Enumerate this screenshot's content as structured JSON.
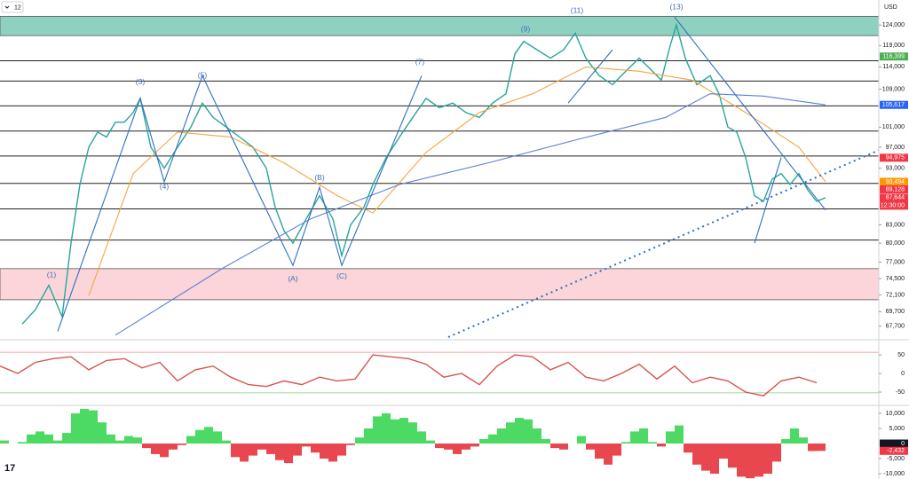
{
  "chart_data": [
    {
      "type": "line",
      "interval": "12",
      "currency": "USD",
      "log_scale": true,
      "xlim": [
        0,
        990
      ],
      "ylim": [
        66000,
        130400
      ],
      "yticks": [
        {
          "value": 124000,
          "label": "124,000"
        },
        {
          "value": 119000,
          "label": "119,000"
        },
        {
          "value": 114000,
          "label": "114,000"
        },
        {
          "value": 109000,
          "label": "109,000"
        },
        {
          "value": 101000,
          "label": "101,000"
        },
        {
          "value": 97000,
          "label": "97,000"
        },
        {
          "value": 93000,
          "label": "93,000"
        },
        {
          "value": 83000,
          "label": "83,000"
        },
        {
          "value": 80000,
          "label": "80,000"
        },
        {
          "value": 77000,
          "label": "77,000"
        },
        {
          "value": 74500,
          "label": "74,500"
        },
        {
          "value": 72100,
          "label": "72,100"
        },
        {
          "value": 69700,
          "label": "69,700"
        },
        {
          "value": 67700,
          "label": "67,700"
        }
      ],
      "zones": [
        {
          "from": 121400,
          "to": 126200,
          "color": "#8fd1c0"
        },
        {
          "from": 71400,
          "to": 76000,
          "color": "#fbd5d9"
        }
      ],
      "levels": [
        115400,
        110800,
        105400,
        100200,
        95300,
        90200,
        85700,
        80500
      ],
      "series": [
        {
          "color": "#26a69a",
          "x": [
            25,
            40,
            55,
            70,
            80,
            90,
            100,
            110,
            120,
            130,
            140,
            150,
            158,
            170,
            185,
            200,
            215,
            228,
            240,
            255,
            270,
            285,
            300,
            310,
            320,
            330,
            345,
            360,
            375,
            385,
            395,
            410,
            420,
            435,
            450,
            465,
            480,
            495,
            510,
            525,
            540,
            555,
            570,
            580,
            590,
            605,
            620,
            635,
            648,
            660,
            675,
            690,
            705,
            720,
            735,
            745,
            755,
            762,
            772,
            785,
            800,
            810,
            820,
            830,
            840,
            850,
            860,
            870,
            880,
            890,
            900,
            910,
            920,
            930
          ],
          "values": [
            68000,
            70000,
            73500,
            69000,
            80000,
            90000,
            97000,
            100000,
            99000,
            102000,
            102000,
            104000,
            107000,
            97000,
            93000,
            97000,
            101000,
            106000,
            103000,
            101000,
            99000,
            97000,
            93000,
            86000,
            82000,
            80000,
            84000,
            88000,
            84000,
            78000,
            83000,
            86000,
            90000,
            95000,
            99000,
            103000,
            107000,
            105000,
            106000,
            104000,
            103000,
            106000,
            108000,
            117000,
            120000,
            118000,
            116000,
            118000,
            122000,
            116000,
            112000,
            110000,
            113000,
            116000,
            113000,
            111000,
            119000,
            124000,
            116000,
            110000,
            112000,
            108000,
            101000,
            100000,
            95000,
            88000,
            87000,
            91000,
            92000,
            90000,
            92000,
            89000,
            87000,
            87644
          ]
        },
        {
          "color": "#f5a544",
          "x": [
            100,
            150,
            200,
            260,
            320,
            380,
            420,
            480,
            540,
            600,
            660,
            720,
            780,
            840,
            900,
            930
          ],
          "values": [
            72000,
            92000,
            100000,
            99000,
            94000,
            88000,
            85000,
            96000,
            104000,
            108000,
            114000,
            113000,
            111000,
            104000,
            97000,
            90494
          ]
        },
        {
          "color": "#5b7fd6",
          "x": [
            130,
            250,
            350,
            450,
            550,
            650,
            750,
            800,
            860,
            930
          ],
          "values": [
            66500,
            76000,
            84000,
            90000,
            94000,
            98500,
            103000,
            108000,
            107500,
            105617
          ]
        },
        {
          "color": "#2f6fc0",
          "x": [
            65,
            158,
            185,
            228,
            330,
            360,
            385,
            475,
            null,
            640,
            690,
            null,
            760,
            930,
            null,
            850,
            880
          ],
          "values": [
            67000,
            107000,
            90500,
            112000,
            76500,
            89500,
            76500,
            112000,
            null,
            106000,
            118000,
            null,
            126000,
            85500,
            null,
            80000,
            95000
          ]
        }
      ],
      "annotations": [
        {
          "text": "(1)",
          "x": 58,
          "y": 75000
        },
        {
          "text": "(3)",
          "x": 158,
          "y": 110500
        },
        {
          "text": "(5)",
          "x": 228,
          "y": 112000
        },
        {
          "text": "(4)",
          "x": 185,
          "y": 89600
        },
        {
          "text": "(A)",
          "x": 330,
          "y": 74400
        },
        {
          "text": "(B)",
          "x": 360,
          "y": 91200
        },
        {
          "text": "(C)",
          "x": 385,
          "y": 74800
        },
        {
          "text": "(7)",
          "x": 473,
          "y": 115100
        },
        {
          "text": "(9)",
          "x": 592,
          "y": 122950
        },
        {
          "text": "(11)",
          "x": 650,
          "y": 127600
        },
        {
          "text": "(13)",
          "x": 762,
          "y": 128550
        }
      ],
      "tags": [
        {
          "value": 116399,
          "label": "116,399",
          "color": "#4caf50"
        },
        {
          "value": 105617,
          "label": "105,617",
          "color": "#2962ff"
        },
        {
          "value": 94975,
          "label": "94,975",
          "color": "#f23645"
        },
        {
          "value": 90494,
          "label": "90,494",
          "color": "#ff9800"
        },
        {
          "value": 89128,
          "label": "89,128",
          "color": "#f23645"
        },
        {
          "value": 87644,
          "label": "87,644",
          "color": "#f23645"
        }
      ],
      "countdown": "12:30:00"
    },
    {
      "type": "line",
      "xlim": [
        0,
        990
      ],
      "ylim": [
        -81,
        86
      ],
      "yticks": [
        50,
        0,
        -50
      ],
      "levels": [
        {
          "value": 57,
          "color": "#f28b8b"
        },
        {
          "value": -52,
          "color": "#7fd17f"
        }
      ],
      "series": [
        {
          "color": "#d9534f",
          "x": [
            0,
            20,
            40,
            60,
            80,
            100,
            120,
            140,
            160,
            180,
            200,
            220,
            240,
            260,
            280,
            300,
            320,
            340,
            360,
            380,
            400,
            420,
            440,
            460,
            480,
            500,
            520,
            540,
            560,
            580,
            600,
            620,
            640,
            660,
            680,
            700,
            720,
            740,
            760,
            780,
            800,
            820,
            840,
            860,
            880,
            900,
            920
          ],
          "values": [
            20,
            0,
            30,
            40,
            45,
            10,
            35,
            40,
            15,
            30,
            -20,
            10,
            20,
            -10,
            -30,
            -35,
            -20,
            -30,
            -10,
            -20,
            -15,
            50,
            45,
            40,
            25,
            -10,
            0,
            -30,
            20,
            50,
            45,
            10,
            30,
            -10,
            -20,
            0,
            25,
            -15,
            20,
            -25,
            -10,
            -20,
            -50,
            -60,
            -20,
            -10,
            -25
          ]
        }
      ]
    },
    {
      "type": "bar",
      "xlim": [
        0,
        990
      ],
      "ylim": [
        -11760,
        12350
      ],
      "yticks": [
        {
          "value": 10000,
          "label": "10,000"
        },
        {
          "value": 5000,
          "label": "5,000"
        },
        {
          "value": -5000,
          "label": "-5,000"
        },
        {
          "value": -10000,
          "label": "-10,000"
        }
      ],
      "pos_color": "#4cd964",
      "neg_color": "#e8474f",
      "x": [
        5,
        15,
        25,
        35,
        45,
        55,
        65,
        75,
        85,
        95,
        105,
        115,
        125,
        135,
        145,
        155,
        165,
        175,
        185,
        195,
        205,
        215,
        225,
        235,
        245,
        255,
        265,
        275,
        285,
        295,
        305,
        315,
        325,
        335,
        345,
        355,
        365,
        375,
        385,
        395,
        405,
        415,
        425,
        435,
        445,
        455,
        465,
        475,
        485,
        495,
        505,
        515,
        525,
        535,
        545,
        555,
        565,
        575,
        585,
        595,
        605,
        615,
        625,
        635,
        645,
        655,
        665,
        675,
        685,
        695,
        705,
        715,
        725,
        735,
        745,
        755,
        765,
        775,
        785,
        795,
        805,
        815,
        825,
        835,
        845,
        855,
        865,
        875,
        885,
        895,
        905,
        915,
        925
      ],
      "values": [
        1000,
        0,
        500,
        3000,
        4000,
        3000,
        1000,
        3500,
        10000,
        11500,
        11000,
        7000,
        3000,
        1000,
        2500,
        2000,
        -1500,
        -3500,
        -4500,
        -2000,
        -500,
        2500,
        4500,
        5500,
        4000,
        1000,
        -4500,
        -6000,
        -4000,
        -2000,
        -3500,
        -5500,
        -6500,
        -4000,
        -1000,
        -3000,
        -5000,
        -6000,
        -4000,
        -500,
        2000,
        5000,
        9000,
        10000,
        8000,
        8500,
        7000,
        4000,
        1000,
        -1500,
        -2000,
        -3500,
        -2000,
        -1000,
        1500,
        3000,
        5000,
        7000,
        8500,
        8000,
        5000,
        1500,
        -1500,
        -2000,
        0,
        2500,
        -2000,
        -5000,
        -7000,
        -4000,
        500,
        4000,
        5000,
        500,
        -1000,
        4000,
        6000,
        -3000,
        -7000,
        -9000,
        -10000,
        -5000,
        -8000,
        -11000,
        -11500,
        -11000,
        -10000,
        -6000,
        1500,
        5000,
        2000,
        -2500,
        -2432
      ],
      "tags": [
        {
          "value": 0,
          "color": "#131722"
        },
        {
          "value": -2432,
          "label": "-2,432",
          "color": "#f23645"
        }
      ]
    }
  ]
}
